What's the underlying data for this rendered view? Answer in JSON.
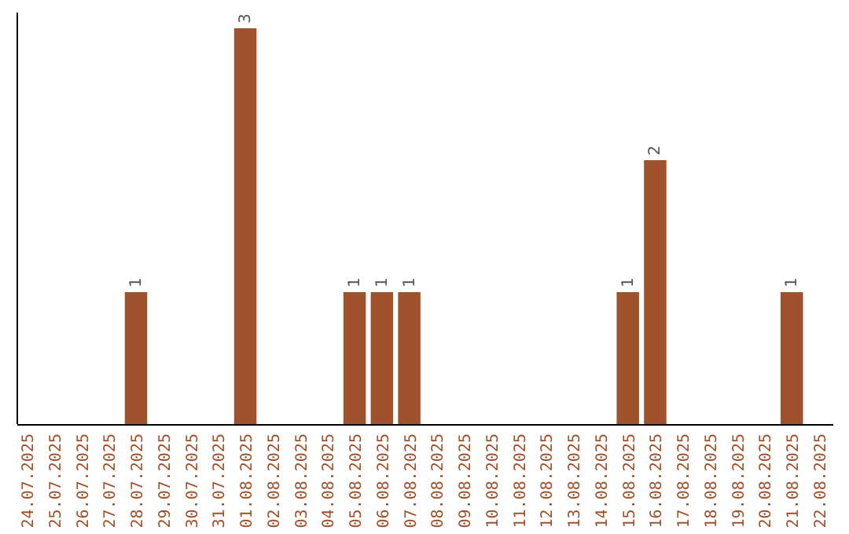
{
  "chart_data": {
    "type": "bar",
    "categories": [
      "24.07.2025",
      "25.07.2025",
      "26.07.2025",
      "27.07.2025",
      "28.07.2025",
      "29.07.2025",
      "30.07.2025",
      "31.07.2025",
      "01.08.2025",
      "02.08.2025",
      "03.08.2025",
      "04.08.2025",
      "05.08.2025",
      "06.08.2025",
      "07.08.2025",
      "08.08.2025",
      "09.08.2025",
      "10.08.2025",
      "11.08.2025",
      "12.08.2025",
      "13.08.2025",
      "14.08.2025",
      "15.08.2025",
      "16.08.2025",
      "17.08.2025",
      "18.08.2025",
      "19.08.2025",
      "20.08.2025",
      "21.08.2025",
      "22.08.2025"
    ],
    "values": [
      0,
      0,
      0,
      0,
      1,
      0,
      0,
      0,
      3,
      0,
      0,
      0,
      1,
      1,
      1,
      0,
      0,
      0,
      0,
      0,
      0,
      0,
      1,
      2,
      0,
      0,
      0,
      0,
      1,
      0
    ],
    "value_labels": [
      null,
      null,
      null,
      null,
      "1",
      null,
      null,
      null,
      "3",
      null,
      null,
      null,
      "1",
      "1",
      "1",
      null,
      null,
      null,
      null,
      null,
      null,
      null,
      "1",
      "2",
      null,
      null,
      null,
      null,
      "1",
      null
    ],
    "color": "#a0522d",
    "tick_labels": "x"
  }
}
